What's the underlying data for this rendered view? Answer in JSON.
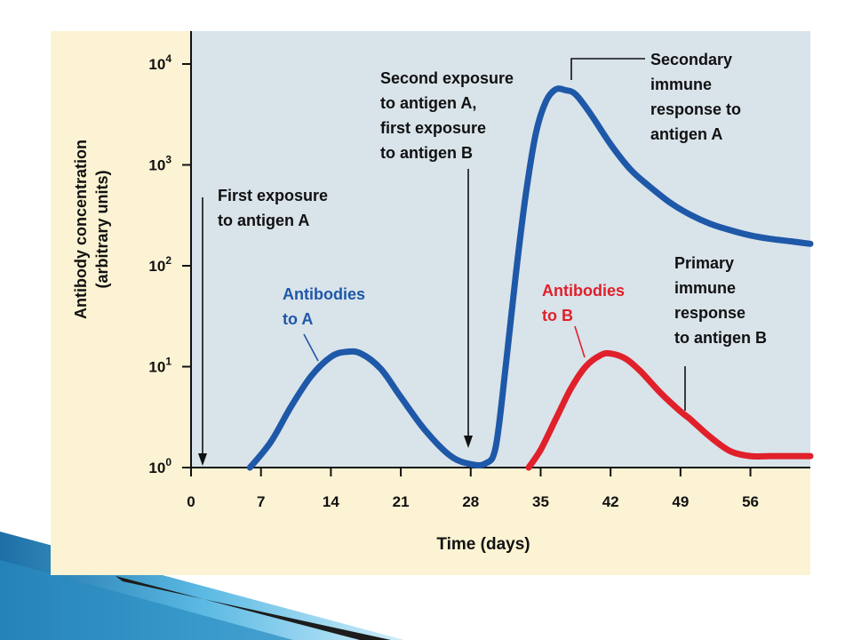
{
  "chart_data": {
    "type": "line",
    "title": "",
    "xlabel": "Time (days)",
    "ylabel": [
      "Antibody concentration",
      "(arbitrary units)"
    ],
    "x_ticks": [
      0,
      7,
      14,
      21,
      28,
      35,
      42,
      49,
      56
    ],
    "x_tick_labels": [
      "0",
      "7",
      "14",
      "21",
      "28",
      "35",
      "42",
      "49",
      "56"
    ],
    "xlim": [
      0,
      62
    ],
    "y_scale": "log",
    "ylim": [
      1,
      10000
    ],
    "y_ticks": [
      1,
      10,
      100,
      1000,
      10000
    ],
    "y_tick_labels": [
      {
        "base": "10",
        "exp": "0"
      },
      {
        "base": "10",
        "exp": "1"
      },
      {
        "base": "10",
        "exp": "2"
      },
      {
        "base": "10",
        "exp": "3"
      },
      {
        "base": "10",
        "exp": "4"
      }
    ],
    "grid": false,
    "series": [
      {
        "name": "Antibodies to A",
        "color": "#1e58a8",
        "points": [
          [
            5.9,
            1
          ],
          [
            8,
            1.8
          ],
          [
            10,
            4
          ],
          [
            12,
            8
          ],
          [
            14,
            12.5
          ],
          [
            15.5,
            14
          ],
          [
            17,
            13.5
          ],
          [
            19,
            9.5
          ],
          [
            21,
            5
          ],
          [
            23.5,
            2.3
          ],
          [
            26,
            1.3
          ],
          [
            28,
            1.08
          ],
          [
            29.5,
            1.1
          ],
          [
            30.5,
            1.6
          ],
          [
            31.5,
            10
          ],
          [
            32.5,
            80
          ],
          [
            33.5,
            500
          ],
          [
            34.5,
            2000
          ],
          [
            35.5,
            4200
          ],
          [
            36.5,
            5600
          ],
          [
            37.5,
            5500
          ],
          [
            38.5,
            5000
          ],
          [
            40,
            3200
          ],
          [
            42,
            1600
          ],
          [
            44,
            900
          ],
          [
            46,
            600
          ],
          [
            48,
            420
          ],
          [
            50,
            320
          ],
          [
            52,
            260
          ],
          [
            54,
            225
          ],
          [
            56,
            200
          ],
          [
            58,
            185
          ],
          [
            60,
            175
          ],
          [
            62,
            165
          ]
        ]
      },
      {
        "name": "Antibodies to B",
        "color": "#e0202a",
        "points": [
          [
            33.8,
            1
          ],
          [
            35,
            1.5
          ],
          [
            36.5,
            3
          ],
          [
            38,
            6
          ],
          [
            39.5,
            10
          ],
          [
            41,
            13
          ],
          [
            42,
            13.5
          ],
          [
            43.5,
            12
          ],
          [
            45,
            9
          ],
          [
            47,
            5.5
          ],
          [
            49,
            3.6
          ],
          [
            50,
            3
          ],
          [
            52,
            2
          ],
          [
            54,
            1.45
          ],
          [
            56,
            1.3
          ],
          [
            58,
            1.3
          ],
          [
            62,
            1.3
          ]
        ]
      }
    ],
    "annotations": {
      "first_exposure": [
        "First exposure",
        "to antigen A"
      ],
      "second_exposure": [
        "Second exposure",
        "to antigen A,",
        "first exposure",
        "to antigen B"
      ],
      "secondary_response": [
        "Secondary",
        "immune",
        "response to",
        "antigen A"
      ],
      "primary_response": [
        "Primary",
        "immune",
        "response",
        "to antigen B"
      ],
      "label_a": [
        "Antibodies",
        "to A"
      ],
      "label_b": [
        "Antibodies",
        "to B"
      ]
    }
  },
  "colors": {
    "plot_background": "#d9e3ea",
    "panel_background": "#fbf3d3",
    "series_a": "#1e58a8",
    "series_b": "#e0202a",
    "slide_accent": "#2b8fc4"
  }
}
